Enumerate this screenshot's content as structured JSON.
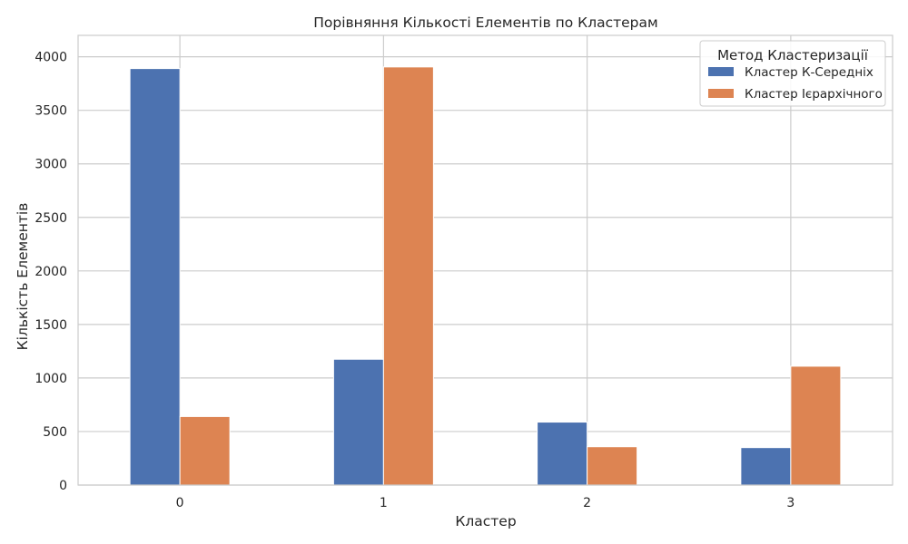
{
  "chart_data": {
    "type": "bar",
    "title": "Порівняння Кількості Елементів по Кластерам",
    "xlabel": "Кластер",
    "ylabel": "Кількість Елементів",
    "categories": [
      "0",
      "1",
      "2",
      "3"
    ],
    "series": [
      {
        "name": "Кластер К-Середніх",
        "values": [
          3890,
          1175,
          588,
          350
        ],
        "color": "#4c72b0"
      },
      {
        "name": "Кластер Ієрархічного",
        "values": [
          640,
          3905,
          358,
          1110
        ],
        "color": "#dd8452"
      }
    ],
    "ylim": [
      0,
      4200
    ],
    "yticks": [
      0,
      500,
      1000,
      1500,
      2000,
      2500,
      3000,
      3500,
      4000
    ],
    "grid": true,
    "legend": {
      "title": "Метод Кластеризації",
      "placement": "top-right"
    }
  }
}
